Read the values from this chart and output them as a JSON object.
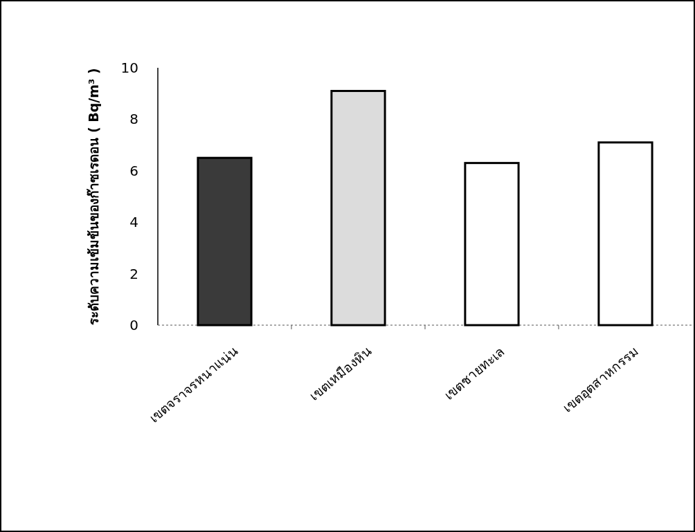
{
  "chart_data": {
    "type": "bar",
    "ylabel": "ระดับความเข้มข้นของก๊าซเรดอน ( Bq/m³ )",
    "categories": [
      "เขตจราจรหนาแน่น",
      "เขตเหมืองหิน",
      "เขตชายทะเล",
      "เขตอุตสาหกรรม"
    ],
    "values": [
      6.5,
      9.1,
      6.3,
      7.1
    ],
    "colors": [
      "#3a3a3a",
      "#dcdcdc",
      "#ffffff",
      "#ffffff"
    ],
    "ylim": [
      0,
      10
    ],
    "yticks": [
      0,
      2,
      4,
      6,
      8,
      10
    ],
    "grid": false
  }
}
